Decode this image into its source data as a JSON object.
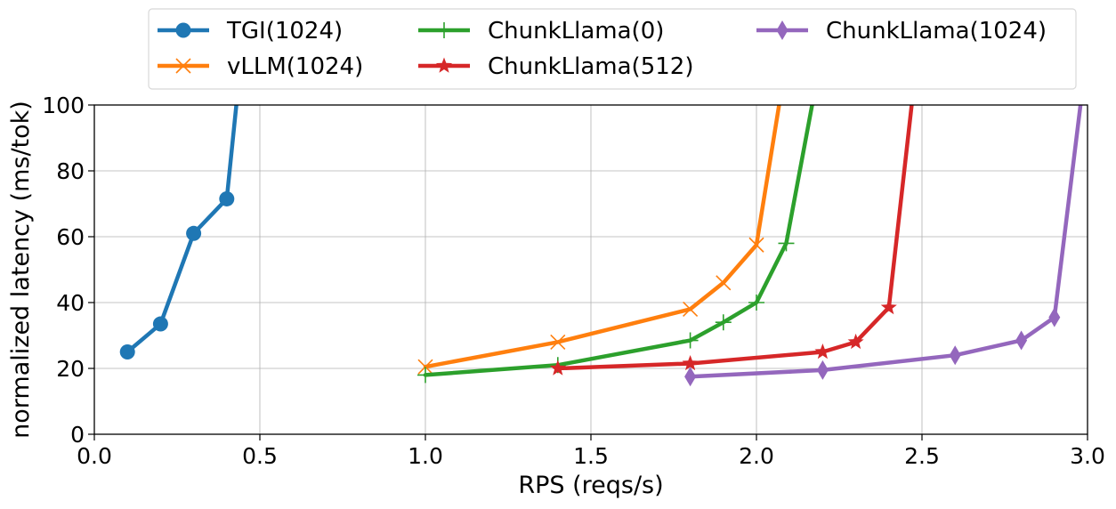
{
  "chart_data": {
    "type": "line",
    "title": "",
    "xlabel": "RPS (reqs/s)",
    "ylabel": "normalized latency (ms/tok)",
    "xlim": [
      0.0,
      3.0
    ],
    "ylim": [
      0,
      100
    ],
    "xticks": [
      0.0,
      0.5,
      1.0,
      1.5,
      2.0,
      2.5,
      3.0
    ],
    "xtick_labels": [
      "0.0",
      "0.5",
      "1.0",
      "1.5",
      "2.0",
      "2.5",
      "3.0"
    ],
    "yticks": [
      0,
      20,
      40,
      60,
      80,
      100
    ],
    "ytick_labels": [
      "0",
      "20",
      "40",
      "60",
      "80",
      "100"
    ],
    "grid": true,
    "legend": {
      "placement": "top-center, above plot",
      "columns": 3
    },
    "series": [
      {
        "name": "TGI(1024)",
        "color": "#1f77b4",
        "marker": "circle",
        "x": [
          0.1,
          0.2,
          0.3,
          0.4,
          0.43
        ],
        "y": [
          25,
          33.5,
          61,
          71.5,
          101
        ],
        "marked": [
          true,
          true,
          true,
          true,
          false
        ]
      },
      {
        "name": "vLLM(1024)",
        "color": "#ff7f0e",
        "marker": "x",
        "x": [
          1.0,
          1.4,
          1.8,
          1.9,
          2.0,
          2.07
        ],
        "y": [
          20.5,
          28,
          38,
          46,
          57.5,
          101
        ],
        "marked": [
          true,
          true,
          true,
          true,
          true,
          false
        ]
      },
      {
        "name": "ChunkLlama(0)",
        "color": "#2ca02c",
        "marker": "plus",
        "x": [
          1.0,
          1.4,
          1.8,
          1.9,
          2.0,
          2.09,
          2.17
        ],
        "y": [
          18,
          21,
          28.5,
          34,
          40,
          58,
          101
        ],
        "marked": [
          true,
          true,
          true,
          true,
          true,
          true,
          false
        ]
      },
      {
        "name": "ChunkLlama(512)",
        "color": "#d62728",
        "marker": "star",
        "x": [
          1.4,
          1.8,
          2.2,
          2.3,
          2.4,
          2.47
        ],
        "y": [
          20,
          21.5,
          25,
          28,
          38.5,
          101
        ],
        "marked": [
          true,
          true,
          true,
          true,
          true,
          false
        ]
      },
      {
        "name": "ChunkLlama(1024)",
        "color": "#9467bd",
        "marker": "diamond",
        "x": [
          1.8,
          2.2,
          2.6,
          2.8,
          2.9,
          2.98
        ],
        "y": [
          17.5,
          19.5,
          24,
          28.5,
          35.5,
          101
        ],
        "marked": [
          true,
          true,
          true,
          true,
          true,
          false
        ]
      }
    ]
  }
}
